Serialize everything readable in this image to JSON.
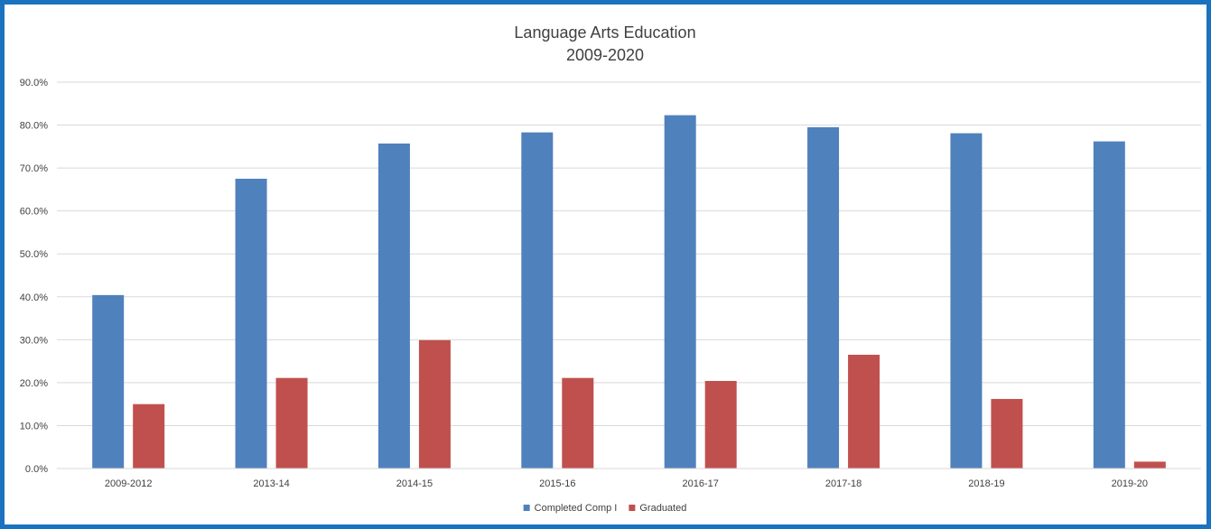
{
  "chart_data": {
    "type": "bar",
    "title": [
      "Language Arts Education",
      "2009-2020"
    ],
    "xlabel": "",
    "ylabel": "",
    "categories": [
      "2009-2012",
      "2013-14",
      "2014-15",
      "2015-16",
      "2016-17",
      "2017-18",
      "2018-19",
      "2019-20"
    ],
    "series": [
      {
        "name": "Completed Comp I",
        "color": "#4f81bd",
        "values": [
          40.4,
          67.5,
          75.7,
          78.3,
          82.3,
          79.5,
          78.1,
          76.2
        ]
      },
      {
        "name": "Graduated",
        "color": "#c0504d",
        "values": [
          15.0,
          21.1,
          29.9,
          21.1,
          20.4,
          26.5,
          16.2,
          1.6
        ]
      }
    ],
    "ylim": [
      0,
      90
    ],
    "yticks": [
      0,
      10,
      20,
      30,
      40,
      50,
      60,
      70,
      80,
      90
    ],
    "ytick_labels": [
      "0.0%",
      "10.0%",
      "20.0%",
      "30.0%",
      "40.0%",
      "50.0%",
      "60.0%",
      "70.0%",
      "80.0%",
      "90.0%"
    ],
    "grid": true,
    "legend_position": "bottom"
  }
}
